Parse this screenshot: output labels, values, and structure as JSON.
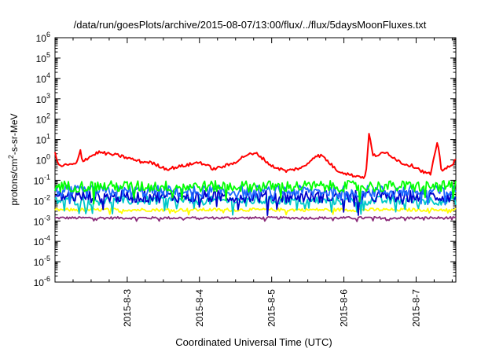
{
  "chart_data": {
    "type": "line",
    "title": "/data/run/goesPlots/archive/2015-08-07/13:00/flux/../flux/5daysMoonFluxes.txt",
    "xlabel": "Coordinated Universal Time (UTC)",
    "ylabel": {
      "main": "protons/cm",
      "sup": "2",
      "rest": "-s-sr-MeV"
    },
    "y_scale": "log",
    "ylim_exponents": [
      -6,
      6
    ],
    "y_tick_base": "10",
    "y_tick_exponents": [
      "6",
      "5",
      "4",
      "3",
      "2",
      "1",
      "0",
      "-1",
      "-2",
      "-3",
      "-4",
      "-5",
      "-6"
    ],
    "x_range_days": [
      2.0,
      7.55
    ],
    "x_tick_labels": [
      "2015-8-3",
      "2015-8-4",
      "2015-8-5",
      "2015-8-6",
      "2015-8-7"
    ],
    "x_tick_days": [
      3,
      4,
      5,
      6,
      7
    ],
    "grid": false,
    "legend": "none",
    "series": [
      {
        "color": "#ff0000",
        "log_base": 0.0,
        "log_amp": 0.3,
        "noise": 0.08,
        "segments": [
          [
            2.0,
            0.35
          ],
          [
            2.05,
            -0.3
          ],
          [
            2.3,
            -0.2
          ],
          [
            2.35,
            0.48
          ],
          [
            2.38,
            -0.05
          ],
          [
            2.6,
            0.38
          ],
          [
            2.9,
            0.2
          ],
          [
            3.2,
            -0.1
          ],
          [
            3.3,
            -0.1
          ],
          [
            3.55,
            -0.45
          ],
          [
            3.9,
            -0.2
          ],
          [
            4.0,
            -0.1
          ],
          [
            4.2,
            -0.45
          ],
          [
            4.45,
            -0.2
          ],
          [
            4.65,
            0.25
          ],
          [
            4.8,
            0.3
          ],
          [
            5.0,
            -0.3
          ],
          [
            5.2,
            -0.55
          ],
          [
            5.45,
            -0.35
          ],
          [
            5.6,
            0.2
          ],
          [
            5.7,
            0.2
          ],
          [
            5.9,
            -0.5
          ],
          [
            6.1,
            -0.75
          ],
          [
            6.3,
            -0.85
          ],
          [
            6.35,
            1.35
          ],
          [
            6.4,
            0.2
          ],
          [
            6.6,
            0.35
          ],
          [
            6.8,
            -0.15
          ],
          [
            7.0,
            -0.35
          ],
          [
            7.1,
            -0.6
          ],
          [
            7.2,
            -0.7
          ],
          [
            7.3,
            0.9
          ],
          [
            7.35,
            -0.5
          ],
          [
            7.5,
            -0.3
          ],
          [
            7.55,
            0.1
          ]
        ]
      },
      {
        "color": "#00ff00",
        "log_base": -1.3,
        "noise": 0.28
      },
      {
        "color": "#1e6bff",
        "log_base": -1.55,
        "noise": 0.3
      },
      {
        "color": "#0000cc",
        "log_base": -1.8,
        "noise": 0.3
      },
      {
        "color": "#00c8c8",
        "log_base": -2.0,
        "noise": 0.22
      },
      {
        "color": "#ffff00",
        "log_base": -2.45,
        "noise": 0.08
      },
      {
        "color": "#8b2b7a",
        "log_base": -2.85,
        "noise": 0.06
      }
    ]
  }
}
